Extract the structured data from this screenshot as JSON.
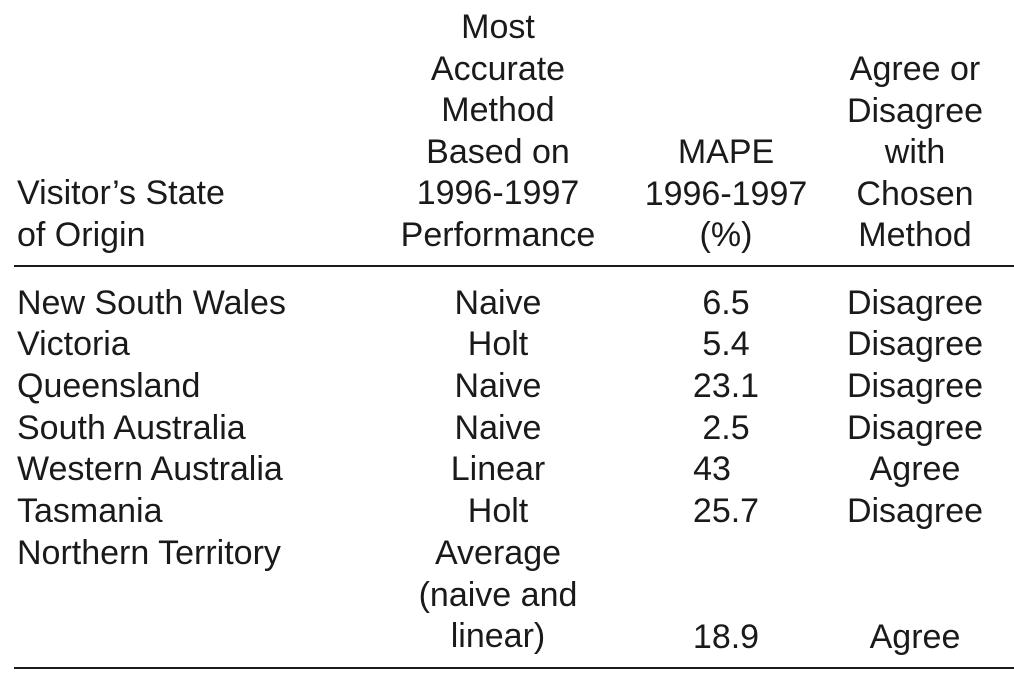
{
  "headers": {
    "state": [
      "Visitor’s State",
      "of Origin"
    ],
    "method": [
      "Most",
      "Accurate",
      "Method",
      "Based on",
      "1996-1997",
      "Performance"
    ],
    "mape": [
      "MAPE",
      "1996-1997",
      "(%)"
    ],
    "agree": [
      "Agree or",
      "Disagree",
      "with",
      "Chosen",
      "Method"
    ]
  },
  "rows": [
    {
      "state": "New South Wales",
      "method": [
        "Naive"
      ],
      "mape": "6.5",
      "agreement": "Disagree"
    },
    {
      "state": "Victoria",
      "method": [
        "Holt"
      ],
      "mape": "5.4",
      "agreement": "Disagree"
    },
    {
      "state": "Queensland",
      "method": [
        "Naive"
      ],
      "mape": "23.1",
      "agreement": "Disagree"
    },
    {
      "state": "South Australia",
      "method": [
        "Naive"
      ],
      "mape": "2.5",
      "agreement": "Disagree"
    },
    {
      "state": "Western Australia",
      "method": [
        "Linear"
      ],
      "mape": "43",
      "agreement": "Agree"
    },
    {
      "state": "Tasmania",
      "method": [
        "Holt"
      ],
      "mape": "25.7",
      "agreement": "Disagree"
    },
    {
      "state": "Northern Territory",
      "method": [
        "Average",
        "(naive and",
        "linear)"
      ],
      "mape": "18.9",
      "agreement": "Agree"
    }
  ]
}
